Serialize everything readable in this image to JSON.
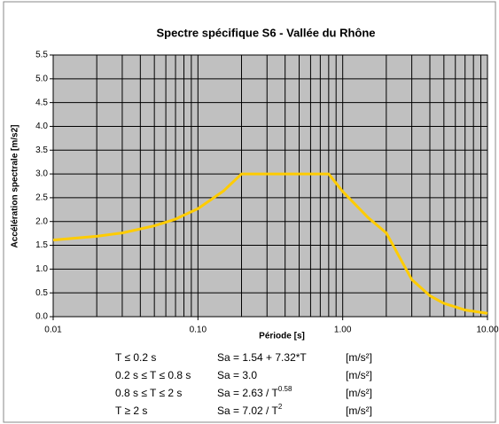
{
  "chart_data": {
    "type": "line",
    "title": "Spectre spécifique S6 - Vallée du Rhône",
    "x_label": "Période [s]",
    "y_label": "Accélération spectrale [m/s2]",
    "xscale": "log",
    "grid": true,
    "color": "#ffcc00",
    "x": [
      0.01,
      0.02,
      0.03,
      0.05,
      0.07,
      0.1,
      0.15,
      0.2,
      0.8,
      1,
      1.5,
      2,
      3,
      4,
      5,
      7,
      10
    ],
    "values": [
      1.61,
      1.69,
      1.76,
      1.91,
      2.05,
      2.27,
      2.64,
      3.0,
      3.0,
      2.63,
      2.08,
      1.76,
      0.78,
      0.44,
      0.28,
      0.14,
      0.07
    ],
    "xlim": [
      0.01,
      10
    ],
    "xticks": [
      0.01,
      {
        "value": 0.1,
        "label": "0.10"
      },
      {
        "value": 1,
        "label": "1.00"
      },
      {
        "value": 10,
        "label": "10.00"
      }
    ],
    "xminorticks": [
      0.02,
      0.03,
      0.04,
      0.05,
      0.06,
      0.07,
      0.08,
      0.09,
      0.2,
      0.3,
      0.4,
      0.5,
      0.6,
      0.7,
      0.8,
      0.9,
      2,
      3,
      4,
      5,
      6,
      7,
      8,
      9
    ],
    "ylim": [
      0,
      5.5
    ],
    "yticks": [
      {
        "value": 0,
        "label": "0.0"
      },
      0.5,
      {
        "value": 1,
        "label": "1.0"
      },
      1.5,
      {
        "value": 2,
        "label": "2.0"
      },
      2.5,
      {
        "value": 3,
        "label": "3.0"
      },
      3.5,
      {
        "value": 4,
        "label": "4.0"
      },
      4.5,
      {
        "value": 5,
        "label": "5.0"
      },
      5.5
    ],
    "formulas": [
      {
        "condition": "T ≤ 0.2 s",
        "formula": "Sa = 1.54 + 7.32*T",
        "unit": "[m/s²]"
      },
      {
        "condition": "0.2 s ≤ T ≤ 0.8 s",
        "formula": "Sa = 3.0",
        "unit": "[m/s²]"
      },
      {
        "condition": "0.8 s ≤ T ≤ 2 s",
        "formula": "Sa = 2.63 / T",
        "exponent": "0.58",
        "unit": "[m/s²]"
      },
      {
        "condition": "T ≥ 2 s",
        "formula": "Sa = 7.02 / T",
        "exponent": "2",
        "unit": "[m/s²]"
      }
    ]
  }
}
